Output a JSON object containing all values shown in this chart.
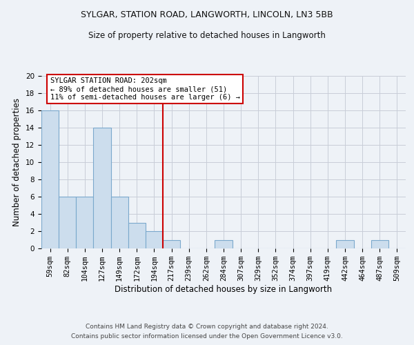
{
  "title1": "SYLGAR, STATION ROAD, LANGWORTH, LINCOLN, LN3 5BB",
  "title2": "Size of property relative to detached houses in Langworth",
  "xlabel": "Distribution of detached houses by size in Langworth",
  "ylabel": "Number of detached properties",
  "categories": [
    "59sqm",
    "82sqm",
    "104sqm",
    "127sqm",
    "149sqm",
    "172sqm",
    "194sqm",
    "217sqm",
    "239sqm",
    "262sqm",
    "284sqm",
    "307sqm",
    "329sqm",
    "352sqm",
    "374sqm",
    "397sqm",
    "419sqm",
    "442sqm",
    "464sqm",
    "487sqm",
    "509sqm"
  ],
  "values": [
    16,
    6,
    6,
    14,
    6,
    3,
    2,
    1,
    0,
    0,
    1,
    0,
    0,
    0,
    0,
    0,
    0,
    1,
    0,
    1,
    0
  ],
  "bar_color": "#ccdded",
  "bar_edge_color": "#7aa8cc",
  "annotation_text": "SYLGAR STATION ROAD: 202sqm\n← 89% of detached houses are smaller (51)\n11% of semi-detached houses are larger (6) →",
  "vline_x_index": 6.5,
  "vline_color": "#cc0000",
  "ylim": [
    0,
    20
  ],
  "yticks": [
    0,
    2,
    4,
    6,
    8,
    10,
    12,
    14,
    16,
    18,
    20
  ],
  "background_color": "#eef2f7",
  "footer1": "Contains HM Land Registry data © Crown copyright and database right 2024.",
  "footer2": "Contains public sector information licensed under the Open Government Licence v3.0.",
  "grid_color": "#c8cdd8",
  "annotation_box_color": "#ffffff",
  "annotation_border_color": "#cc0000",
  "title1_fontsize": 9,
  "title2_fontsize": 8.5,
  "tick_fontsize": 7.5,
  "label_fontsize": 8.5,
  "footer_fontsize": 6.5,
  "ann_fontsize": 7.5
}
